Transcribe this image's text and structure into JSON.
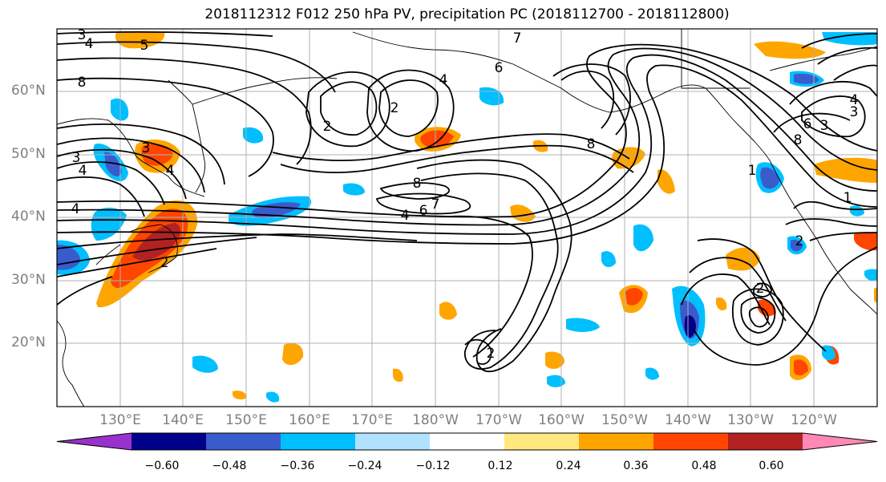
{
  "title": "2018112312 F012 250 hPa PV, precipitation PC (2018112700 - 2018112800)",
  "lat_labels": [
    "60°N",
    "50°N",
    "40°N",
    "30°N",
    "20°N"
  ],
  "lon_labels": [
    "130°E",
    "140°E",
    "150°E",
    "160°E",
    "170°E",
    "180°W",
    "170°W",
    "160°W",
    "150°W",
    "140°W",
    "130°W",
    "120°W"
  ],
  "colorbar": {
    "colors": [
      "#9932cc",
      "#00008b",
      "#3a5bcc",
      "#00bfff",
      "#b0e2ff",
      "#ffffff",
      "#ffe97f",
      "#ffa500",
      "#ff4500",
      "#b22222",
      "#ff88b4"
    ],
    "ticks": [
      "−0.60",
      "−0.48",
      "−0.36",
      "−0.24",
      "−0.12",
      "0.12",
      "0.24",
      "0.36",
      "0.48",
      "0.60"
    ]
  },
  "contour_labels": [
    {
      "text": "3"
    },
    {
      "text": "4"
    },
    {
      "text": "5"
    },
    {
      "text": "8"
    },
    {
      "text": "3"
    },
    {
      "text": "4"
    },
    {
      "text": "4"
    },
    {
      "text": "3"
    },
    {
      "text": "4"
    },
    {
      "text": "2"
    },
    {
      "text": "2"
    },
    {
      "text": "2"
    },
    {
      "text": "4"
    },
    {
      "text": "7"
    },
    {
      "text": "6"
    },
    {
      "text": "8"
    },
    {
      "text": "7"
    },
    {
      "text": "6"
    },
    {
      "text": "4"
    },
    {
      "text": "8"
    },
    {
      "text": "2"
    },
    {
      "text": "8"
    },
    {
      "text": "6"
    },
    {
      "text": "3"
    },
    {
      "text": "4"
    },
    {
      "text": "3"
    },
    {
      "text": "1"
    },
    {
      "text": "1"
    },
    {
      "text": "2"
    },
    {
      "text": "2"
    }
  ]
}
